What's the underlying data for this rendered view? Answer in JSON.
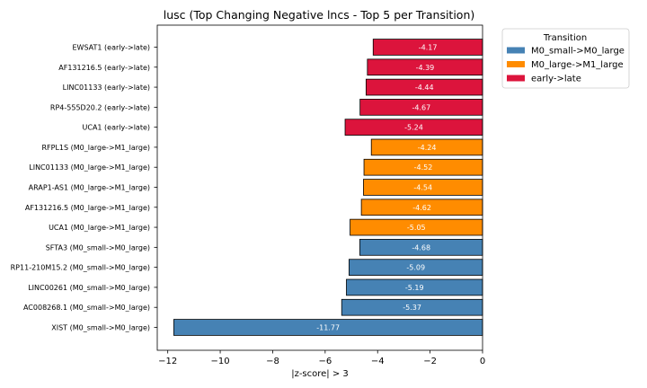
{
  "chart_data": {
    "type": "bar",
    "orientation": "horizontal",
    "title": "lusc (Top Changing Negative lncs - Top 5 per Transition)",
    "xlabel": "|z-score| > 3",
    "ylabel": "",
    "xlim": [
      -12.4,
      0
    ],
    "xticks": [
      {
        "value": -12,
        "label": "−12"
      },
      {
        "value": -10,
        "label": "−10"
      },
      {
        "value": -8,
        "label": "−8"
      },
      {
        "value": -6,
        "label": "−6"
      },
      {
        "value": -4,
        "label": "−4"
      },
      {
        "value": -2,
        "label": "−2"
      },
      {
        "value": 0,
        "label": "0"
      }
    ],
    "legend": {
      "title": "Transition",
      "placement": "outside-right-top",
      "entries": [
        {
          "name": "M0_small->M0_large",
          "color": "#4682b4"
        },
        {
          "name": "M0_large->M1_large",
          "color": "#ff8c00"
        },
        {
          "name": "early->late",
          "color": "#dc143c"
        }
      ]
    },
    "bars": [
      {
        "category": "EWSAT1 (early->late)",
        "value": -4.17,
        "label": "-4.17",
        "series": "early->late"
      },
      {
        "category": "AF131216.5 (early->late)",
        "value": -4.39,
        "label": "-4.39",
        "series": "early->late"
      },
      {
        "category": "LINC01133 (early->late)",
        "value": -4.44,
        "label": "-4.44",
        "series": "early->late"
      },
      {
        "category": "RP4-555D20.2 (early->late)",
        "value": -4.67,
        "label": "-4.67",
        "series": "early->late"
      },
      {
        "category": "UCA1 (early->late)",
        "value": -5.24,
        "label": "-5.24",
        "series": "early->late"
      },
      {
        "category": "RFPL1S (M0_large->M1_large)",
        "value": -4.24,
        "label": "-4.24",
        "series": "M0_large->M1_large"
      },
      {
        "category": "LINC01133 (M0_large->M1_large)",
        "value": -4.52,
        "label": "-4.52",
        "series": "M0_large->M1_large"
      },
      {
        "category": "ARAP1-AS1 (M0_large->M1_large)",
        "value": -4.54,
        "label": "-4.54",
        "series": "M0_large->M1_large"
      },
      {
        "category": "AF131216.5 (M0_large->M1_large)",
        "value": -4.62,
        "label": "-4.62",
        "series": "M0_large->M1_large"
      },
      {
        "category": "UCA1 (M0_large->M1_large)",
        "value": -5.05,
        "label": "-5.05",
        "series": "M0_large->M1_large"
      },
      {
        "category": "SFTA3 (M0_small->M0_large)",
        "value": -4.68,
        "label": "-4.68",
        "series": "M0_small->M0_large"
      },
      {
        "category": "RP11-210M15.2 (M0_small->M0_large)",
        "value": -5.09,
        "label": "-5.09",
        "series": "M0_small->M0_large"
      },
      {
        "category": "LINC00261 (M0_small->M0_large)",
        "value": -5.19,
        "label": "-5.19",
        "series": "M0_small->M0_large"
      },
      {
        "category": "AC008268.1 (M0_small->M0_large)",
        "value": -5.37,
        "label": "-5.37",
        "series": "M0_small->M0_large"
      },
      {
        "category": "XIST (M0_small->M0_large)",
        "value": -11.77,
        "label": "-11.77",
        "series": "M0_small->M0_large"
      }
    ],
    "grid": false
  }
}
